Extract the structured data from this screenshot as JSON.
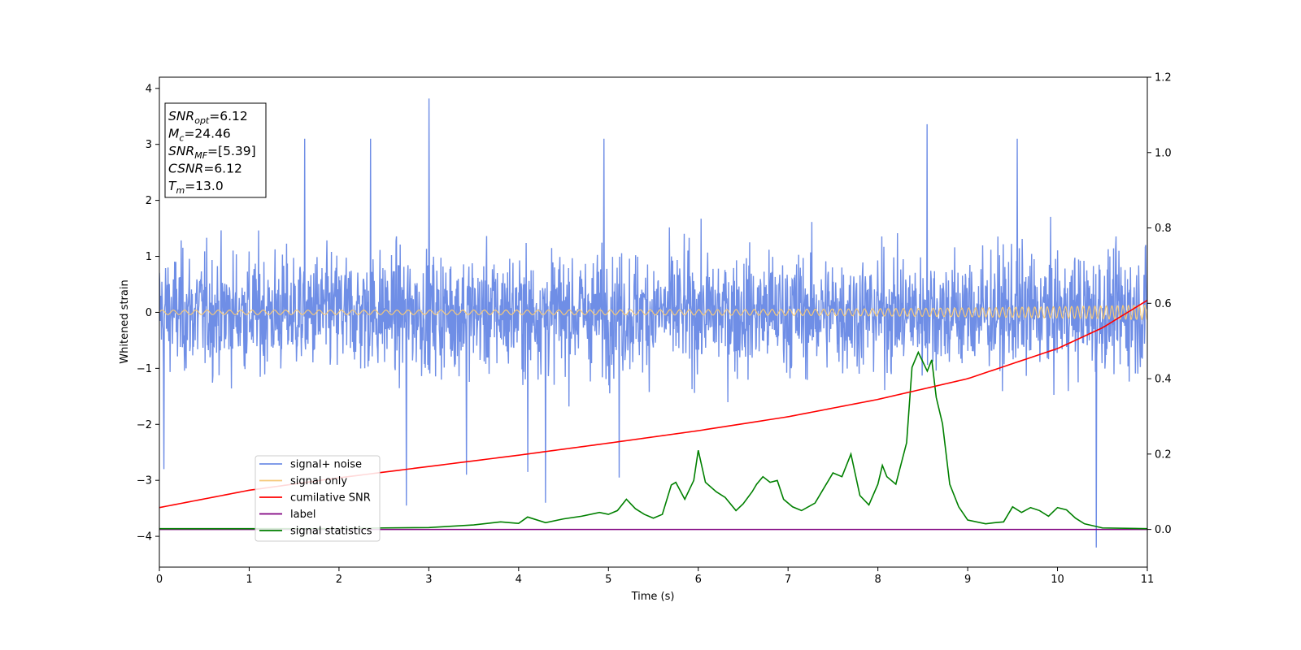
{
  "chart_data": {
    "type": "line",
    "xlabel": "Time (s)",
    "ylabel": "Whitened strain",
    "xlim": [
      0,
      11
    ],
    "ylim_left": [
      -4.55,
      4.2
    ],
    "ylim_right": [
      -0.1,
      1.2
    ],
    "x_ticks": [
      0,
      1,
      2,
      3,
      4,
      5,
      6,
      7,
      8,
      9,
      10,
      11
    ],
    "y_ticks_left": [
      -4,
      -3,
      -2,
      -1,
      0,
      1,
      2,
      3,
      4
    ],
    "y_ticks_left_labels": [
      "−4",
      "−3",
      "−2",
      "−1",
      "0",
      "1",
      "2",
      "3",
      "4"
    ],
    "y_ticks_right": [
      0.0,
      0.2,
      0.4,
      0.6,
      0.8,
      1.0,
      1.2
    ],
    "y_ticks_right_labels": [
      "0.0",
      "0.2",
      "0.4",
      "0.6",
      "0.8",
      "1.0",
      "1.2"
    ],
    "grid": false,
    "legend_position": "lower-left",
    "colors": {
      "signal_noise": "#6f8ee6",
      "signal_only": "#f5c97a",
      "cumulative_snr": "#ff0000",
      "label": "#800080",
      "signal_statistics": "#008000"
    },
    "legend": [
      {
        "name": "signal+ noise",
        "color": "#6f8ee6"
      },
      {
        "name": "signal only",
        "color": "#f5c97a"
      },
      {
        "name": "cumilative SNR",
        "color": "#ff0000"
      },
      {
        "name": "label",
        "color": "#800080"
      },
      {
        "name": "signal statistics",
        "color": "#008000"
      }
    ],
    "annotation": {
      "lines": [
        {
          "base": "SNR",
          "sub": "opt",
          "val": "=6.12"
        },
        {
          "base": "M",
          "sub": "c",
          "val": "=24.46"
        },
        {
          "base": "SNR",
          "sub": "MF",
          "val": "=[5.39]"
        },
        {
          "base": "CSNR",
          "sub": "",
          "val": "=6.12"
        },
        {
          "base": "T",
          "sub": "m",
          "val": "=13.0"
        }
      ]
    },
    "series": [
      {
        "name": "signal+ noise",
        "axis": "left",
        "kind": "noise",
        "envelope": [
          -2.0,
          2.0
        ],
        "spikes": [
          [
            3.0,
            3.82
          ],
          [
            8.55,
            3.36
          ],
          [
            0.05,
            -2.8
          ],
          [
            2.75,
            -3.45
          ],
          [
            4.3,
            -3.4
          ],
          [
            10.43,
            -4.2
          ],
          [
            1.62,
            3.1
          ],
          [
            2.35,
            3.1
          ],
          [
            4.95,
            3.1
          ],
          [
            9.55,
            3.1
          ],
          [
            3.42,
            -2.9
          ],
          [
            4.1,
            -2.85
          ],
          [
            5.12,
            -2.95
          ]
        ]
      },
      {
        "name": "signal only",
        "axis": "left",
        "kind": "chirp",
        "amplitude_start": 0.04,
        "amplitude_end": 0.13
      },
      {
        "name": "cumilative SNR",
        "axis": "right",
        "x": [
          0,
          1,
          2,
          3,
          4,
          5,
          6,
          7,
          8,
          9,
          10,
          10.5,
          11
        ],
        "values": [
          0.058,
          0.104,
          0.137,
          0.167,
          0.197,
          0.229,
          0.262,
          0.299,
          0.345,
          0.4,
          0.48,
          0.535,
          0.608
        ]
      },
      {
        "name": "label",
        "axis": "right",
        "x": [
          0,
          11
        ],
        "values": [
          0.0,
          0.0
        ]
      },
      {
        "name": "signal statistics",
        "axis": "right",
        "x": [
          0,
          1,
          2,
          2.5,
          3.0,
          3.5,
          3.8,
          4.0,
          4.1,
          4.3,
          4.5,
          4.7,
          4.9,
          5.0,
          5.1,
          5.2,
          5.3,
          5.4,
          5.5,
          5.6,
          5.7,
          5.75,
          5.85,
          5.95,
          6.0,
          6.08,
          6.2,
          6.3,
          6.42,
          6.5,
          6.6,
          6.65,
          6.72,
          6.8,
          6.88,
          6.95,
          7.05,
          7.15,
          7.3,
          7.4,
          7.5,
          7.6,
          7.7,
          7.8,
          7.9,
          8.0,
          8.05,
          8.1,
          8.2,
          8.32,
          8.38,
          8.45,
          8.55,
          8.6,
          8.65,
          8.72,
          8.8,
          8.9,
          9.0,
          9.2,
          9.3,
          9.4,
          9.5,
          9.6,
          9.7,
          9.8,
          9.9,
          10.0,
          10.1,
          10.2,
          10.3,
          10.5,
          11.0
        ],
        "values": [
          0.002,
          0.002,
          0.002,
          0.004,
          0.005,
          0.012,
          0.02,
          0.016,
          0.033,
          0.018,
          0.028,
          0.035,
          0.045,
          0.04,
          0.05,
          0.08,
          0.055,
          0.04,
          0.03,
          0.04,
          0.118,
          0.125,
          0.08,
          0.13,
          0.21,
          0.125,
          0.1,
          0.085,
          0.05,
          0.068,
          0.1,
          0.12,
          0.14,
          0.125,
          0.13,
          0.08,
          0.06,
          0.05,
          0.07,
          0.11,
          0.15,
          0.14,
          0.2,
          0.09,
          0.065,
          0.12,
          0.17,
          0.14,
          0.12,
          0.23,
          0.43,
          0.47,
          0.42,
          0.45,
          0.35,
          0.28,
          0.12,
          0.06,
          0.025,
          0.015,
          0.018,
          0.02,
          0.06,
          0.045,
          0.058,
          0.05,
          0.035,
          0.058,
          0.052,
          0.03,
          0.015,
          0.004,
          0.002
        ]
      }
    ]
  }
}
